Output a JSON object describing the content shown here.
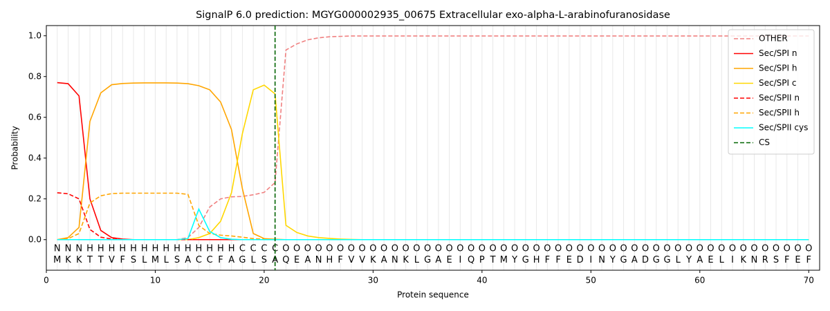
{
  "chart_data": {
    "type": "line",
    "title": "SignalP 6.0 prediction: MGYG000002935_00675 Extracellular exo-alpha-L-arabinofuranosidase",
    "xlabel": "Protein sequence",
    "ylabel": "Probability",
    "xlim": [
      0,
      71
    ],
    "ylim": [
      -0.15,
      1.05
    ],
    "xticks": [
      0,
      10,
      20,
      30,
      40,
      50,
      60,
      70
    ],
    "yticks": [
      {
        "value": 0,
        "label": "0.0"
      },
      {
        "value": 0.2,
        "label": "0.2"
      },
      {
        "value": 0.4,
        "label": "0.4"
      },
      {
        "value": 0.6,
        "label": "0.6"
      },
      {
        "value": 0.8,
        "label": "0.8"
      },
      {
        "value": 1,
        "label": "1.0"
      }
    ],
    "legend": "upper right",
    "x": [
      1,
      2,
      3,
      4,
      5,
      6,
      7,
      8,
      9,
      10,
      11,
      12,
      13,
      14,
      15,
      16,
      17,
      18,
      19,
      20,
      21,
      22,
      23,
      24,
      25,
      26,
      27,
      28,
      29,
      30,
      31,
      32,
      33,
      34,
      35,
      36,
      37,
      38,
      39,
      40,
      41,
      42,
      43,
      44,
      45,
      46,
      47,
      48,
      49,
      50,
      51,
      52,
      53,
      54,
      55,
      56,
      57,
      58,
      59,
      60,
      61,
      62,
      63,
      64,
      65,
      66,
      67,
      68,
      69,
      70
    ],
    "sequence": [
      "M",
      "K",
      "K",
      "T",
      "T",
      "V",
      "F",
      "S",
      "L",
      "M",
      "L",
      "S",
      "A",
      "C",
      "C",
      "F",
      "A",
      "G",
      "L",
      "S",
      "A",
      "Q",
      "E",
      "A",
      "N",
      "H",
      "F",
      "V",
      "V",
      "K",
      "A",
      "N",
      "K",
      "L",
      "G",
      "A",
      "E",
      "I",
      "Q",
      "P",
      "T",
      "M",
      "Y",
      "G",
      "H",
      "F",
      "F",
      "E",
      "D",
      "I",
      "N",
      "Y",
      "G",
      "A",
      "D",
      "G",
      "G",
      "L",
      "Y",
      "A",
      "E",
      "L",
      "I",
      "K",
      "N",
      "R",
      "S",
      "F",
      "E",
      "F"
    ],
    "regions": [
      "N",
      "N",
      "N",
      "H",
      "H",
      "H",
      "H",
      "H",
      "H",
      "H",
      "H",
      "H",
      "H",
      "H",
      "H",
      "H",
      "H",
      "C",
      "C",
      "C",
      "C",
      "O",
      "O",
      "O",
      "O",
      "O",
      "O",
      "O",
      "O",
      "O",
      "O",
      "O",
      "O",
      "O",
      "O",
      "O",
      "O",
      "O",
      "O",
      "O",
      "O",
      "O",
      "O",
      "O",
      "O",
      "O",
      "O",
      "O",
      "O",
      "O",
      "O",
      "O",
      "O",
      "O",
      "O",
      "O",
      "O",
      "O",
      "O",
      "O",
      "O",
      "O",
      "O",
      "O",
      "O",
      "O",
      "O",
      "O",
      "O",
      "O"
    ],
    "region_colors": {
      "N": "#ff0000",
      "H": "#ffa500",
      "C": "#ffd700",
      "O": "#808080"
    },
    "series": [
      {
        "name": "OTHER",
        "color": "#f08080",
        "dash": true,
        "values": [
          0,
          0,
          0,
          0,
          0,
          0,
          0,
          0,
          0,
          0,
          0,
          0,
          0.01,
          0.06,
          0.16,
          0.2,
          0.21,
          0.212,
          0.22,
          0.232,
          0.28,
          0.93,
          0.96,
          0.98,
          0.99,
          0.995,
          0.997,
          0.999,
          0.999,
          0.999,
          0.999,
          0.999,
          0.999,
          0.999,
          0.999,
          0.999,
          0.999,
          0.999,
          0.999,
          0.999,
          0.999,
          0.999,
          0.999,
          0.999,
          0.999,
          0.999,
          0.999,
          0.999,
          0.999,
          0.999,
          0.999,
          0.999,
          0.999,
          0.999,
          0.999,
          0.999,
          0.999,
          0.999,
          0.999,
          0.999,
          0.999,
          0.999,
          0.999,
          0.999,
          0.999,
          0.999,
          0.999,
          0.999,
          0.999,
          0.999
        ]
      },
      {
        "name": "Sec/SPI n",
        "color": "#ff0000",
        "dash": false,
        "values": [
          0.77,
          0.765,
          0.705,
          0.2,
          0.045,
          0.01,
          0.003,
          0,
          0,
          0,
          0,
          0,
          0,
          0,
          0,
          0,
          0,
          0,
          0,
          0,
          0,
          0,
          0,
          0,
          0,
          0,
          0,
          0,
          0,
          0,
          0,
          0,
          0,
          0,
          0,
          0,
          0,
          0,
          0,
          0,
          0,
          0,
          0,
          0,
          0,
          0,
          0,
          0,
          0,
          0,
          0,
          0,
          0,
          0,
          0,
          0,
          0,
          0,
          0,
          0,
          0,
          0,
          0,
          0,
          0,
          0,
          0,
          0,
          0,
          0
        ]
      },
      {
        "name": "Sec/SPI h",
        "color": "#ffa500",
        "dash": false,
        "values": [
          0,
          0.01,
          0.06,
          0.58,
          0.72,
          0.76,
          0.766,
          0.768,
          0.769,
          0.769,
          0.769,
          0.768,
          0.765,
          0.755,
          0.735,
          0.675,
          0.54,
          0.25,
          0.03,
          0.005,
          0.002,
          0,
          0,
          0,
          0,
          0,
          0,
          0,
          0,
          0,
          0,
          0,
          0,
          0,
          0,
          0,
          0,
          0,
          0,
          0,
          0,
          0,
          0,
          0,
          0,
          0,
          0,
          0,
          0,
          0,
          0,
          0,
          0,
          0,
          0,
          0,
          0,
          0,
          0,
          0,
          0,
          0,
          0,
          0,
          0,
          0,
          0,
          0,
          0,
          0
        ]
      },
      {
        "name": "Sec/SPI c",
        "color": "#ffd700",
        "dash": false,
        "values": [
          0,
          0,
          0,
          0,
          0,
          0,
          0,
          0,
          0,
          0,
          0,
          0,
          0,
          0.01,
          0.03,
          0.09,
          0.23,
          0.52,
          0.735,
          0.758,
          0.715,
          0.07,
          0.035,
          0.018,
          0.01,
          0.006,
          0.003,
          0.001,
          0,
          0,
          0,
          0,
          0,
          0,
          0,
          0,
          0,
          0,
          0,
          0,
          0,
          0,
          0,
          0,
          0,
          0,
          0,
          0,
          0,
          0,
          0,
          0,
          0,
          0,
          0,
          0,
          0,
          0,
          0,
          0,
          0,
          0,
          0,
          0,
          0,
          0,
          0,
          0,
          0,
          0
        ]
      },
      {
        "name": "Sec/SPII n",
        "color": "#ff0000",
        "dash": true,
        "values": [
          0.23,
          0.225,
          0.2,
          0.05,
          0.012,
          0.003,
          0,
          0,
          0,
          0,
          0,
          0,
          0,
          0,
          0,
          0,
          0,
          0,
          0,
          0,
          0,
          0,
          0,
          0,
          0,
          0,
          0,
          0,
          0,
          0,
          0,
          0,
          0,
          0,
          0,
          0,
          0,
          0,
          0,
          0,
          0,
          0,
          0,
          0,
          0,
          0,
          0,
          0,
          0,
          0,
          0,
          0,
          0,
          0,
          0,
          0,
          0,
          0,
          0,
          0,
          0,
          0,
          0,
          0,
          0,
          0,
          0,
          0,
          0,
          0
        ]
      },
      {
        "name": "Sec/SPII h",
        "color": "#ffa500",
        "dash": true,
        "values": [
          0,
          0.005,
          0.03,
          0.18,
          0.215,
          0.226,
          0.228,
          0.228,
          0.228,
          0.228,
          0.228,
          0.228,
          0.222,
          0.07,
          0.03,
          0.022,
          0.018,
          0.012,
          0.005,
          0.002,
          0,
          0,
          0,
          0,
          0,
          0,
          0,
          0,
          0,
          0,
          0,
          0,
          0,
          0,
          0,
          0,
          0,
          0,
          0,
          0,
          0,
          0,
          0,
          0,
          0,
          0,
          0,
          0,
          0,
          0,
          0,
          0,
          0,
          0,
          0,
          0,
          0,
          0,
          0,
          0,
          0,
          0,
          0,
          0,
          0,
          0,
          0,
          0,
          0,
          0
        ]
      },
      {
        "name": "Sec/SPII cys",
        "color": "#00ffff",
        "dash": false,
        "values": [
          0,
          0,
          0,
          0,
          0,
          0,
          0,
          0,
          0,
          0,
          0,
          0,
          0.005,
          0.15,
          0.04,
          0.01,
          0.002,
          0,
          0,
          0,
          0,
          0,
          0,
          0,
          0,
          0,
          0,
          0,
          0,
          0,
          0,
          0,
          0,
          0,
          0,
          0,
          0,
          0,
          0,
          0,
          0,
          0,
          0,
          0,
          0,
          0,
          0,
          0,
          0,
          0,
          0,
          0,
          0,
          0,
          0,
          0,
          0,
          0,
          0,
          0,
          0,
          0,
          0,
          0,
          0,
          0,
          0,
          0,
          0,
          0
        ]
      }
    ],
    "cs": {
      "name": "CS",
      "color": "#006400",
      "x": 21
    }
  }
}
